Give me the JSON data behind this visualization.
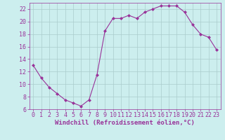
{
  "x": [
    0,
    1,
    2,
    3,
    4,
    5,
    6,
    7,
    8,
    9,
    10,
    11,
    12,
    13,
    14,
    15,
    16,
    17,
    18,
    19,
    20,
    21,
    22,
    23
  ],
  "y": [
    13,
    11,
    9.5,
    8.5,
    7.5,
    7,
    6.5,
    7.5,
    11.5,
    18.5,
    20.5,
    20.5,
    21,
    20.5,
    21.5,
    22,
    22.5,
    22.5,
    22.5,
    21.5,
    19.5,
    18,
    17.5,
    15.5
  ],
  "line_color": "#993399",
  "marker": "D",
  "marker_size": 2,
  "bg_color": "#cceeee",
  "grid_color": "#aacccc",
  "xlabel": "Windchill (Refroidissement éolien,°C)",
  "xlabel_fontsize": 6.5,
  "tick_fontsize": 6,
  "ylim": [
    6,
    23
  ],
  "xlim": [
    -0.5,
    23.5
  ],
  "yticks": [
    6,
    8,
    10,
    12,
    14,
    16,
    18,
    20,
    22
  ],
  "xticks": [
    0,
    1,
    2,
    3,
    4,
    5,
    6,
    7,
    8,
    9,
    10,
    11,
    12,
    13,
    14,
    15,
    16,
    17,
    18,
    19,
    20,
    21,
    22,
    23
  ]
}
